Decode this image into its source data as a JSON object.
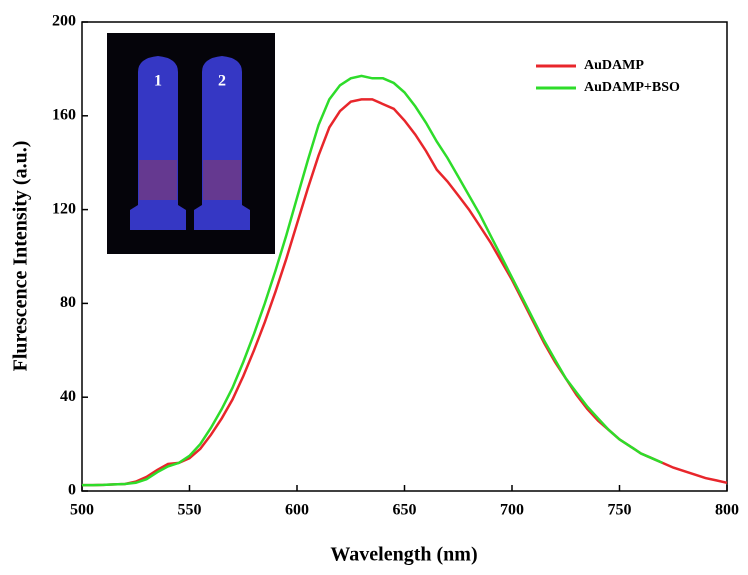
{
  "chart_data": {
    "type": "line",
    "x_label": "Wavelength (nm)",
    "y_label": "Flurescence Intensity (a.u.)",
    "annotations": [
      "1",
      "2"
    ],
    "x": [
      500,
      505,
      510,
      515,
      520,
      525,
      530,
      535,
      540,
      545,
      550,
      555,
      560,
      565,
      570,
      575,
      580,
      585,
      590,
      595,
      600,
      605,
      610,
      615,
      620,
      625,
      630,
      635,
      640,
      645,
      650,
      655,
      660,
      665,
      670,
      675,
      680,
      685,
      690,
      695,
      700,
      705,
      710,
      715,
      720,
      725,
      730,
      735,
      740,
      745,
      750,
      755,
      760,
      765,
      770,
      775,
      780,
      785,
      790,
      795,
      800
    ],
    "series": [
      {
        "name": "AuDAMP",
        "color": "#e8262b",
        "values": [
          2.5,
          2.5,
          2.6,
          2.8,
          3,
          4,
          6,
          9,
          11.5,
          12,
          14,
          18,
          24,
          31,
          39,
          49,
          60,
          72,
          85,
          99,
          114,
          129,
          143,
          155,
          162,
          166,
          167,
          167,
          165,
          163,
          158,
          152,
          145,
          137,
          132,
          126,
          120,
          113,
          106,
          98,
          90,
          81,
          72,
          63,
          55,
          48,
          41,
          35,
          30,
          26,
          22,
          19,
          16,
          14,
          12,
          10,
          8.5,
          7,
          5.5,
          4.5,
          3.5
        ]
      },
      {
        "name": "AuDAMP+BSO",
        "color": "#2edc2a",
        "values": [
          2.5,
          2.5,
          2.6,
          2.8,
          3,
          3.5,
          5,
          8,
          10.5,
          12,
          15,
          20,
          27,
          35,
          44,
          55,
          67,
          80,
          94,
          109,
          125,
          141,
          156,
          167,
          173,
          176,
          177,
          176,
          176,
          174,
          170,
          164,
          157,
          149,
          142,
          134,
          126,
          118,
          109,
          100,
          91,
          82,
          73,
          64,
          56,
          48,
          42,
          36,
          31,
          26,
          22,
          19,
          16,
          14,
          12,
          null,
          null,
          null,
          null,
          null,
          null
        ]
      }
    ],
    "xlim": [
      500,
      800
    ],
    "xticks": [
      500,
      550,
      600,
      650,
      700,
      750,
      800
    ],
    "ylim": [
      0,
      200
    ],
    "yticks": [
      0,
      40,
      80,
      120,
      160,
      200
    ],
    "legend_position": "upper right"
  }
}
